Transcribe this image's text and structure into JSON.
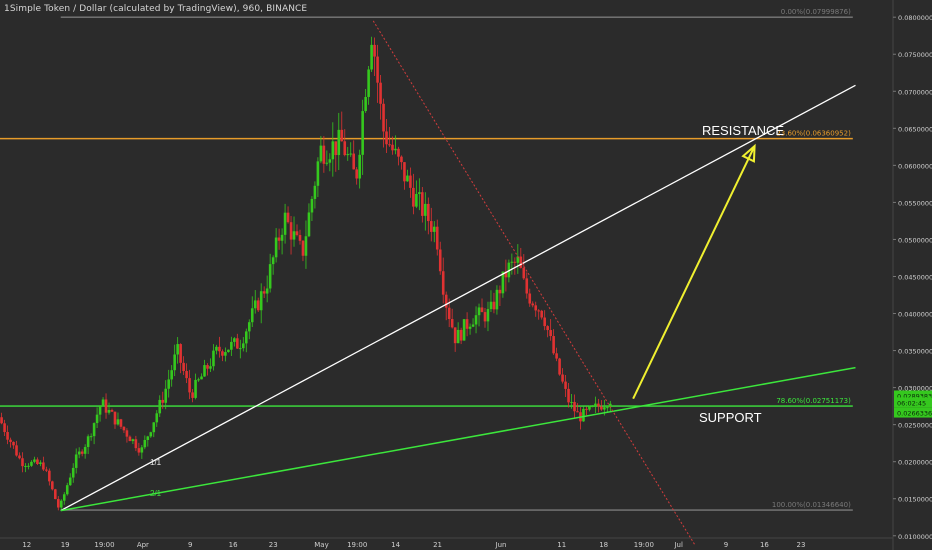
{
  "header": {
    "title": "1Simple Token / Dollar (calculated by TradingView), 960, BINANCE"
  },
  "annotations": {
    "resistance": "RESISTANCE",
    "support": "SUPPORT",
    "wave1": "1/1",
    "wave2": "2/1"
  },
  "colors": {
    "background": "#2b2b2b",
    "up": "#35c81e",
    "down": "#e03232",
    "fib": "#e69b2a",
    "support": "#3ce63c",
    "trend": "#ffffff",
    "arrow": "#f0f030",
    "axis_text": "#cfcfcf"
  },
  "chart_data": {
    "type": "candlestick",
    "title": "1Simple Token / Dollar (calculated by TradingView), 960, BINANCE",
    "ylim": [
      0.0097,
      0.0807
    ],
    "y_ticks": [
      0.08,
      0.075,
      0.07,
      0.065,
      0.06,
      0.055,
      0.05,
      0.045,
      0.04,
      0.035,
      0.03,
      0.025,
      0.02,
      0.015,
      0.01
    ],
    "y_tick_labels": [
      "0.08000000",
      "0.07500000",
      "0.07000000",
      "0.06500000",
      "0.06000000",
      "0.05500000",
      "0.05000000",
      "0.04500000",
      "0.04000000",
      "0.03500000",
      "0.03000000",
      "0.02500000",
      "0.02000000",
      "0.01500000",
      "0.01000000"
    ],
    "x_ticks": [
      {
        "label": "12",
        "pos": 0.03
      },
      {
        "label": "19",
        "pos": 0.073
      },
      {
        "label": "19:00",
        "pos": 0.117
      },
      {
        "label": "Apr",
        "pos": 0.16
      },
      {
        "label": "9",
        "pos": 0.213
      },
      {
        "label": "16",
        "pos": 0.261
      },
      {
        "label": "23",
        "pos": 0.306
      },
      {
        "label": "May",
        "pos": 0.36
      },
      {
        "label": "19:00",
        "pos": 0.4
      },
      {
        "label": "14",
        "pos": 0.443
      },
      {
        "label": "21",
        "pos": 0.49
      },
      {
        "label": "Jun",
        "pos": 0.561
      },
      {
        "label": "11",
        "pos": 0.629
      },
      {
        "label": "18",
        "pos": 0.676
      },
      {
        "label": "19:00",
        "pos": 0.721
      },
      {
        "label": "Jul",
        "pos": 0.76
      },
      {
        "label": "9",
        "pos": 0.813
      },
      {
        "label": "16",
        "pos": 0.856
      },
      {
        "label": "23",
        "pos": 0.897
      }
    ],
    "price_path": [
      {
        "x": 0.0,
        "y": 0.026
      },
      {
        "x": 0.025,
        "y": 0.02
      },
      {
        "x": 0.05,
        "y": 0.0195
      },
      {
        "x": 0.068,
        "y": 0.0135
      },
      {
        "x": 0.085,
        "y": 0.02
      },
      {
        "x": 0.1,
        "y": 0.023
      },
      {
        "x": 0.115,
        "y": 0.028
      },
      {
        "x": 0.135,
        "y": 0.025
      },
      {
        "x": 0.16,
        "y": 0.0215
      },
      {
        "x": 0.185,
        "y": 0.029
      },
      {
        "x": 0.2,
        "y": 0.035
      },
      {
        "x": 0.215,
        "y": 0.029
      },
      {
        "x": 0.245,
        "y": 0.035
      },
      {
        "x": 0.27,
        "y": 0.036
      },
      {
        "x": 0.3,
        "y": 0.044
      },
      {
        "x": 0.32,
        "y": 0.053
      },
      {
        "x": 0.34,
        "y": 0.048
      },
      {
        "x": 0.36,
        "y": 0.062
      },
      {
        "x": 0.385,
        "y": 0.063
      },
      {
        "x": 0.4,
        "y": 0.058
      },
      {
        "x": 0.41,
        "y": 0.07
      },
      {
        "x": 0.418,
        "y": 0.0785
      },
      {
        "x": 0.43,
        "y": 0.065
      },
      {
        "x": 0.445,
        "y": 0.061
      },
      {
        "x": 0.465,
        "y": 0.056
      },
      {
        "x": 0.49,
        "y": 0.051
      },
      {
        "x": 0.5,
        "y": 0.042
      },
      {
        "x": 0.512,
        "y": 0.0365
      },
      {
        "x": 0.53,
        "y": 0.0395
      },
      {
        "x": 0.55,
        "y": 0.04
      },
      {
        "x": 0.57,
        "y": 0.046
      },
      {
        "x": 0.582,
        "y": 0.047
      },
      {
        "x": 0.59,
        "y": 0.043
      },
      {
        "x": 0.61,
        "y": 0.04
      },
      {
        "x": 0.625,
        "y": 0.033
      },
      {
        "x": 0.637,
        "y": 0.0285
      },
      {
        "x": 0.65,
        "y": 0.026
      },
      {
        "x": 0.665,
        "y": 0.027
      },
      {
        "x": 0.685,
        "y": 0.0285
      }
    ],
    "levels": [
      {
        "name": "fib_0",
        "label": "0.00%(0.07999876)",
        "value": 0.07999876,
        "color": "#7a7a7a",
        "x0": 0.068,
        "x1": 0.955
      },
      {
        "name": "fib_23_6",
        "label": "23.60%(0.06360952)",
        "value": 0.06360952,
        "color": "#e69b2a",
        "x0": 0.0,
        "x1": 0.955
      },
      {
        "name": "fib_78_6",
        "label": "78.60%(0.02751173)",
        "value": 0.02751173,
        "color": "#3ce63c",
        "x0": 0.0,
        "x1": 0.955
      },
      {
        "name": "fib_100",
        "label": "100.00%(0.01346640)",
        "value": 0.0134664,
        "color": "#7a7a7a",
        "x0": 0.068,
        "x1": 0.955
      }
    ],
    "trendlines": [
      {
        "name": "white-trendline",
        "color": "#ffffff",
        "points": [
          {
            "x": 0.068,
            "y": 0.0134
          },
          {
            "x": 0.958,
            "y": 0.0708
          }
        ],
        "width": 1.3
      },
      {
        "name": "green-support-line",
        "color": "#3ce63c",
        "points": [
          {
            "x": 0.068,
            "y": 0.0134
          },
          {
            "x": 0.958,
            "y": 0.0327
          }
        ],
        "width": 1.5
      },
      {
        "name": "red-downtrend-line",
        "color": "#d23c3c",
        "points": [
          {
            "x": 0.418,
            "y": 0.0795
          },
          {
            "x": 0.778,
            "y": 0.0088
          }
        ],
        "width": 1,
        "dashed": true
      }
    ],
    "arrow": {
      "color": "#f0f030",
      "from": {
        "x": 0.709,
        "y": 0.0285
      },
      "to": {
        "x": 0.845,
        "y": 0.0626
      }
    },
    "price_labels": [
      {
        "label": "0.02893833",
        "value": 0.02893833,
        "color": "#35c81e"
      },
      {
        "label": "06:02:45",
        "value": 0.028,
        "color": "#35c81e"
      },
      {
        "label": "0.02663360",
        "value": 0.0266336,
        "color": "#35c81e"
      }
    ]
  }
}
